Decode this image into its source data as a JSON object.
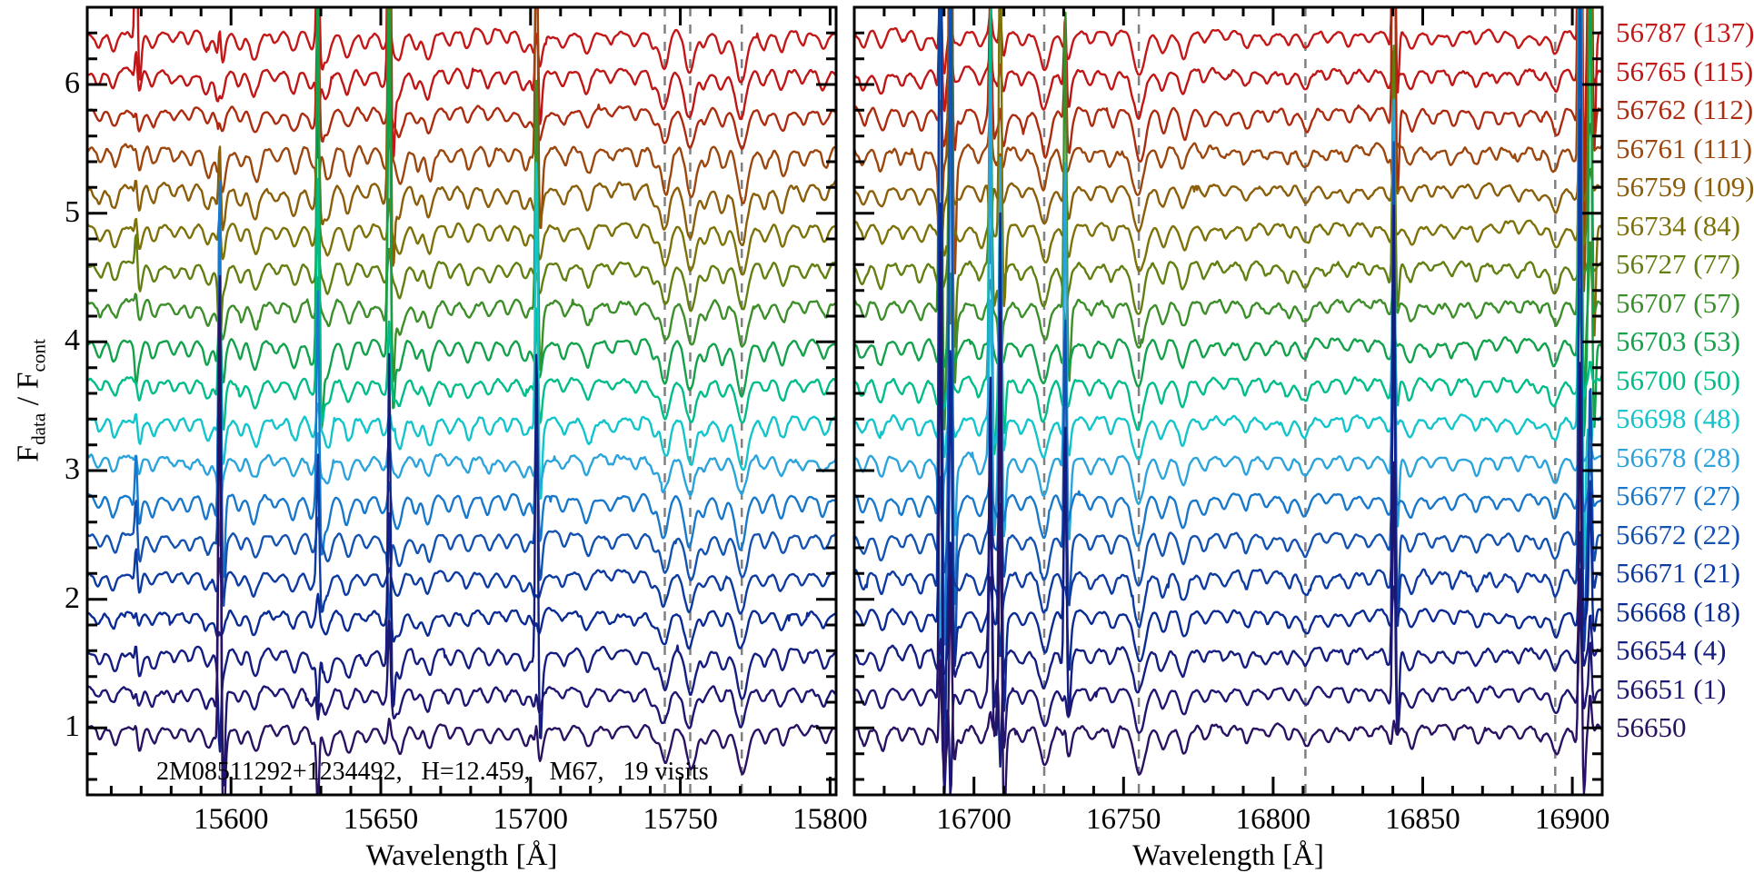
{
  "figure": {
    "background": "#ffffff",
    "frame_color": "#000000",
    "dashed_marker_color": "#808080",
    "text_color": "#000000"
  },
  "chart_data": {
    "type": "line",
    "xlabel": "Wavelength [Å]",
    "ylabel": "F_data / F_cont",
    "annotation": "2M08511292+1234492,   H=12.459,   M67,   19 visits",
    "ylim": [
      0.48,
      6.6
    ],
    "yticks": [
      1,
      2,
      3,
      4,
      5,
      6
    ],
    "y_minor_step": 0.2,
    "x_minor_step": 10,
    "offset_step": 0.3,
    "base_offset": 1.0,
    "legend_position": "right",
    "grid": false,
    "epochs": [
      {
        "label": "56787 (137)",
        "offset": 6.4,
        "color": "#c51717"
      },
      {
        "label": "56765 (115)",
        "offset": 6.1,
        "color": "#c01616"
      },
      {
        "label": "56762 (112)",
        "offset": 5.8,
        "color": "#ad2c10"
      },
      {
        "label": "56761 (111)",
        "offset": 5.5,
        "color": "#9c470e"
      },
      {
        "label": "56759 (109)",
        "offset": 5.2,
        "color": "#8b5e09"
      },
      {
        "label": "56734 (84)",
        "offset": 4.9,
        "color": "#7d7208"
      },
      {
        "label": "56727 (77)",
        "offset": 4.6,
        "color": "#628011"
      },
      {
        "label": "56707 (57)",
        "offset": 4.3,
        "color": "#3c8f2a"
      },
      {
        "label": "56703 (53)",
        "offset": 4.0,
        "color": "#12a24b"
      },
      {
        "label": "56700 (50)",
        "offset": 3.7,
        "color": "#00bd8a"
      },
      {
        "label": "56698 (48)",
        "offset": 3.4,
        "color": "#12c5cb"
      },
      {
        "label": "56678 (28)",
        "offset": 3.1,
        "color": "#2ba4dc"
      },
      {
        "label": "56677 (27)",
        "offset": 2.8,
        "color": "#1878cb"
      },
      {
        "label": "56672 (22)",
        "offset": 2.5,
        "color": "#1452b2"
      },
      {
        "label": "56671 (21)",
        "offset": 2.2,
        "color": "#0d3ba2"
      },
      {
        "label": "56668 (18)",
        "offset": 1.9,
        "color": "#0b2b94"
      },
      {
        "label": "56654 (4)",
        "offset": 1.6,
        "color": "#141d80"
      },
      {
        "label": "56651 (1)",
        "offset": 1.3,
        "color": "#1d1773"
      },
      {
        "label": "56650",
        "offset": 1.0,
        "color": "#2a1263"
      }
    ],
    "panels": [
      {
        "xlim": [
          15552,
          15802
        ],
        "xticks": [
          15600,
          15650,
          15700,
          15750,
          15800
        ],
        "dashed_lines": [
          15744.8,
          15753.3,
          15770.5
        ],
        "absorption_lines": [
          [
            15556,
            0.1,
            1.0
          ],
          [
            15561,
            0.14,
            1.1
          ],
          [
            15569,
            0.16,
            1.0
          ],
          [
            15574,
            0.12,
            1.0
          ],
          [
            15581,
            0.08,
            1.0
          ],
          [
            15586,
            0.1,
            1.0
          ],
          [
            15592,
            0.16,
            1.1
          ],
          [
            15596.5,
            0.26,
            1.3
          ],
          [
            15603,
            0.12,
            1.0
          ],
          [
            15608,
            0.2,
            1.3
          ],
          [
            15615,
            0.08,
            1.0
          ],
          [
            15621,
            0.16,
            1.2
          ],
          [
            15627,
            0.14,
            1.0
          ],
          [
            15632,
            0.22,
            1.3
          ],
          [
            15639,
            0.18,
            1.2
          ],
          [
            15645,
            0.1,
            1.0
          ],
          [
            15651,
            0.12,
            1.0
          ],
          [
            15656,
            0.22,
            1.3
          ],
          [
            15662,
            0.12,
            1.0
          ],
          [
            15666,
            0.2,
            1.2
          ],
          [
            15673,
            0.1,
            1.0
          ],
          [
            15679,
            0.14,
            1.1
          ],
          [
            15686,
            0.12,
            1.1
          ],
          [
            15692,
            0.1,
            1.0
          ],
          [
            15698,
            0.14,
            1.1
          ],
          [
            15702.5,
            0.24,
            1.3
          ],
          [
            15711,
            0.1,
            1.0
          ],
          [
            15719,
            0.16,
            1.2
          ],
          [
            15727,
            0.08,
            1.0
          ],
          [
            15735,
            0.1,
            1.0
          ],
          [
            15741,
            0.12,
            1.0
          ],
          [
            15744.8,
            0.3,
            1.5
          ],
          [
            15753.3,
            0.34,
            1.6
          ],
          [
            15758,
            0.12,
            1.0
          ],
          [
            15764,
            0.14,
            1.1
          ],
          [
            15770.5,
            0.36,
            1.7
          ],
          [
            15778,
            0.12,
            1.1
          ],
          [
            15784,
            0.16,
            1.2
          ],
          [
            15791,
            0.1,
            1.0
          ],
          [
            15798,
            0.12,
            1.1
          ]
        ],
        "emission_spikes": [
          [
            15568.3,
            0.45,
            0.1
          ],
          [
            15596.2,
            1.15,
            0.3
          ],
          [
            15629.0,
            1.05,
            0.3
          ],
          [
            15652.8,
            1.05,
            0.3
          ],
          [
            15702.0,
            0.95,
            0.25
          ]
        ]
      },
      {
        "xlim": [
          16660,
          16910
        ],
        "xticks": [
          16700,
          16750,
          16800,
          16850,
          16900
        ],
        "dashed_lines": [
          16723.5,
          16755.1,
          16810.8,
          16894.3
        ],
        "absorption_lines": [
          [
            16663,
            0.12,
            1.1
          ],
          [
            16669,
            0.16,
            1.2
          ],
          [
            16676,
            0.1,
            1.0
          ],
          [
            16682,
            0.14,
            1.1
          ],
          [
            16689,
            0.22,
            1.3
          ],
          [
            16695,
            0.1,
            1.0
          ],
          [
            16702,
            0.14,
            1.1
          ],
          [
            16709,
            0.2,
            1.3
          ],
          [
            16716,
            0.1,
            1.0
          ],
          [
            16723.5,
            0.3,
            1.6
          ],
          [
            16731,
            0.22,
            1.3
          ],
          [
            16739,
            0.1,
            1.0
          ],
          [
            16746,
            0.12,
            1.0
          ],
          [
            16755.1,
            0.36,
            1.8
          ],
          [
            16763,
            0.16,
            1.2
          ],
          [
            16770,
            0.2,
            1.3
          ],
          [
            16777,
            0.1,
            1.0
          ],
          [
            16784,
            0.08,
            1.0
          ],
          [
            16791,
            0.12,
            1.1
          ],
          [
            16798,
            0.08,
            1.0
          ],
          [
            16805,
            0.1,
            1.0
          ],
          [
            16810.8,
            0.14,
            1.5
          ],
          [
            16818,
            0.08,
            1.0
          ],
          [
            16825,
            0.1,
            1.0
          ],
          [
            16832,
            0.08,
            1.0
          ],
          [
            16839,
            0.12,
            1.1
          ],
          [
            16846,
            0.14,
            1.2
          ],
          [
            16853,
            0.08,
            1.0
          ],
          [
            16860,
            0.1,
            1.0
          ],
          [
            16868,
            0.12,
            1.1
          ],
          [
            16875,
            0.08,
            1.0
          ],
          [
            16882,
            0.1,
            1.0
          ],
          [
            16889,
            0.08,
            1.0
          ],
          [
            16894.3,
            0.18,
            1.4
          ],
          [
            16901,
            0.1,
            1.0
          ]
        ],
        "emission_spikes": [
          [
            16688.8,
            2.6,
            0.4
          ],
          [
            16692.2,
            1.9,
            0.3
          ],
          [
            16705.5,
            1.3,
            0.3
          ],
          [
            16708.8,
            1.1,
            0.25
          ],
          [
            16730.5,
            0.85,
            0.25
          ],
          [
            16840.3,
            1.15,
            0.3
          ],
          [
            16902.6,
            2.6,
            0.42
          ],
          [
            16906.0,
            1.7,
            0.3
          ]
        ]
      }
    ]
  }
}
